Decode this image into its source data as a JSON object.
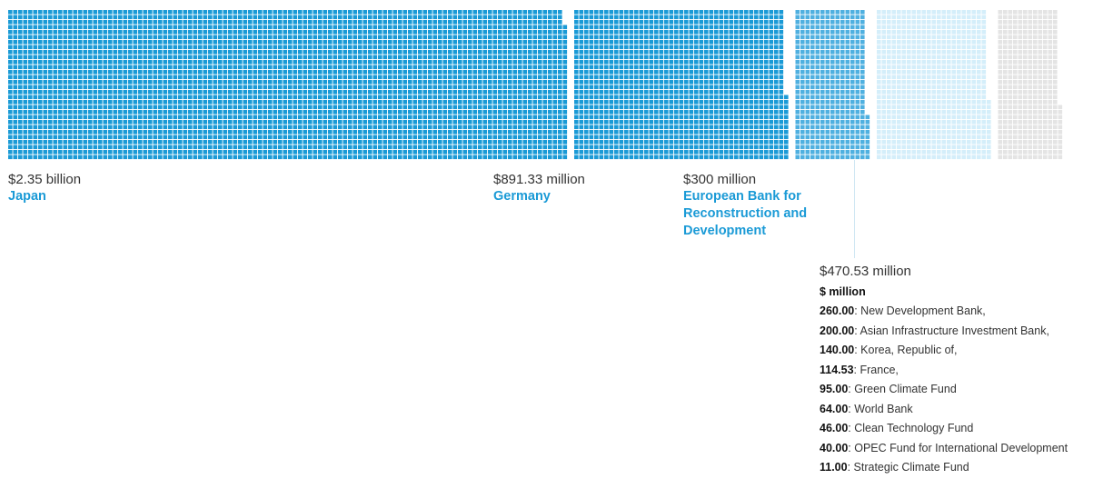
{
  "chart_data": {
    "type": "waffle",
    "unit": "$ million",
    "categories": [
      {
        "name": "Japan",
        "value": 2350,
        "label": "$2.35 billion",
        "color": "#1a9ad6"
      },
      {
        "name": "Germany",
        "value": 891.33,
        "label": "$891.33 million",
        "color": "#1a9ad6"
      },
      {
        "name": "European Bank for Reconstruction and Development",
        "value": 300,
        "label": "$300 million",
        "color": "#4fb0e0"
      },
      {
        "name": "",
        "value": 470.53,
        "label": "$470.53 million",
        "color": "#d4eefa"
      },
      {
        "name": "",
        "value": 260,
        "label": "",
        "color": "#e4e4e4"
      }
    ],
    "others": {
      "heading": "$ million",
      "items": [
        {
          "value": "260.00",
          "name": ": New Development Bank,"
        },
        {
          "value": "200.00",
          "name": ": Asian Infrastructure Investment Bank,"
        },
        {
          "value": "140.00",
          "name": ": Korea, Republic of,"
        },
        {
          "value": "114.53",
          "name": ": France,"
        },
        {
          "value": "95.00",
          "name": ": Green Climate Fund"
        },
        {
          "value": "64.00",
          "name": ": World Bank"
        },
        {
          "value": "46.00",
          "name": ": Clean Technology Fund"
        },
        {
          "value": "40.00",
          "name": ": OPEC Fund for International Development"
        },
        {
          "value": "11.00",
          "name": ": Strategic Climate Fund"
        }
      ]
    }
  }
}
